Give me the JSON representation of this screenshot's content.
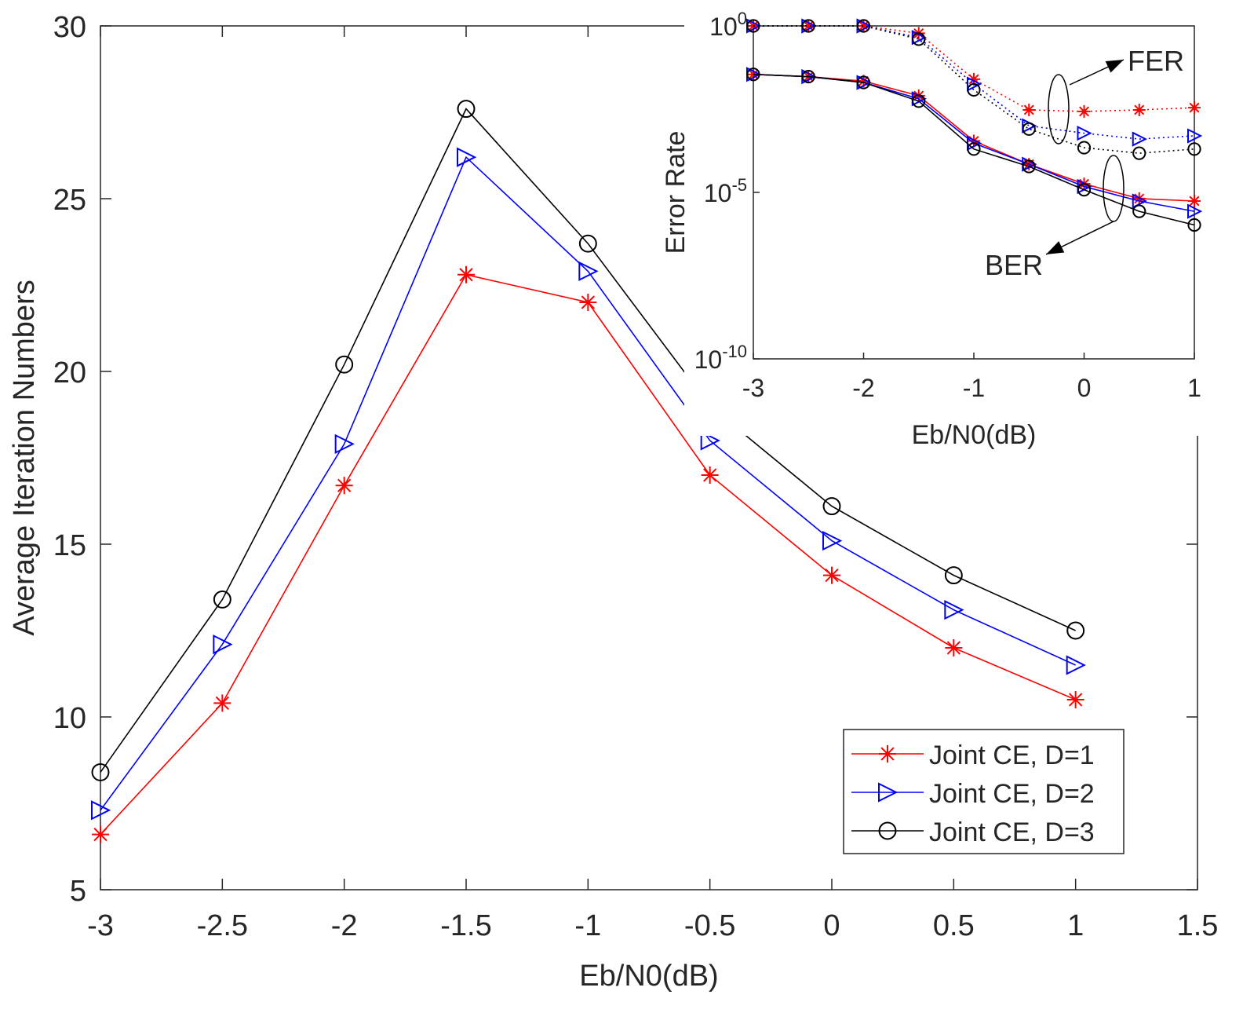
{
  "chart_data": [
    {
      "type": "line",
      "xlabel": "Eb/N0(dB)",
      "ylabel": "Average Iteration Numbers",
      "xlim": [
        -3,
        1.5
      ],
      "ylim": [
        5,
        30
      ],
      "xticks": [
        "-3",
        "-2.5",
        "-2",
        "-1.5",
        "-1",
        "-0.5",
        "0",
        "0.5",
        "1",
        "1.5"
      ],
      "yticks": [
        "5",
        "10",
        "15",
        "20",
        "25",
        "30"
      ],
      "grid": false,
      "legend_position": "bottom-right",
      "x": [
        -3,
        -2.5,
        -2,
        -1.5,
        -1,
        -0.5,
        0,
        0.5,
        1
      ],
      "series": [
        {
          "name": "Joint CE, D=1",
          "color": "#ff0000",
          "marker": "star",
          "values": [
            6.6,
            10.4,
            16.7,
            22.8,
            22.0,
            17.0,
            14.1,
            12.0,
            10.5
          ]
        },
        {
          "name": "Joint CE, D=2",
          "color": "#0000ff",
          "marker": "triangle-right",
          "values": [
            7.3,
            12.1,
            17.9,
            26.2,
            22.9,
            18.0,
            15.1,
            13.1,
            11.5
          ]
        },
        {
          "name": "Joint CE, D=3",
          "color": "#000000",
          "marker": "circle",
          "values": [
            8.4,
            13.4,
            20.2,
            27.6,
            23.7,
            19.0,
            16.1,
            14.1,
            12.5
          ]
        }
      ]
    },
    {
      "type": "line",
      "scale_y": "log",
      "xlabel": "Eb/N0(dB)",
      "ylabel": "Error Rate",
      "xlim": [
        -3,
        1
      ],
      "ylim": [
        1e-10,
        1
      ],
      "xticks": [
        "-3",
        "-2",
        "-1",
        "0",
        "1"
      ],
      "yticks": [
        {
          "base": "10",
          "exp": "0"
        },
        {
          "base": "10",
          "exp": "-5"
        },
        {
          "base": "10",
          "exp": "-10"
        }
      ],
      "annotations": [
        "FER",
        "BER"
      ],
      "x": [
        -3,
        -2.5,
        -2,
        -1.5,
        -1,
        -0.5,
        0,
        0.5,
        1
      ],
      "series": [
        {
          "metric": "FER",
          "color": "#ff0000",
          "marker": "star",
          "style": "dotted",
          "values": [
            1.0,
            1.0,
            1.0,
            0.6,
            0.025,
            0.003,
            0.0027,
            0.003,
            0.0035
          ]
        },
        {
          "metric": "FER",
          "color": "#0000ff",
          "marker": "triangle-right",
          "style": "dotted",
          "values": [
            1.0,
            1.0,
            1.0,
            0.45,
            0.018,
            0.001,
            0.0006,
            0.0004,
            0.0005
          ]
        },
        {
          "metric": "FER",
          "color": "#000000",
          "marker": "circle",
          "style": "dotted",
          "values": [
            1.0,
            1.0,
            1.0,
            0.4,
            0.012,
            0.0008,
            0.00022,
            0.00015,
            0.0002
          ]
        },
        {
          "metric": "BER",
          "color": "#ff0000",
          "marker": "star",
          "style": "solid",
          "values": [
            0.035,
            0.03,
            0.022,
            0.008,
            0.00035,
            7e-05,
            1.8e-05,
            6.5e-06,
            5.5e-06
          ]
        },
        {
          "metric": "BER",
          "color": "#0000ff",
          "marker": "triangle-right",
          "style": "solid",
          "values": [
            0.035,
            0.03,
            0.02,
            0.0065,
            0.0003,
            7e-05,
            1.5e-05,
            5.5e-06,
            2.7e-06
          ]
        },
        {
          "metric": "BER",
          "color": "#000000",
          "marker": "circle",
          "style": "solid",
          "values": [
            0.035,
            0.03,
            0.02,
            0.0055,
            0.0002,
            6e-05,
            1.2e-05,
            2.7e-06,
            1.05e-06
          ]
        }
      ]
    }
  ]
}
